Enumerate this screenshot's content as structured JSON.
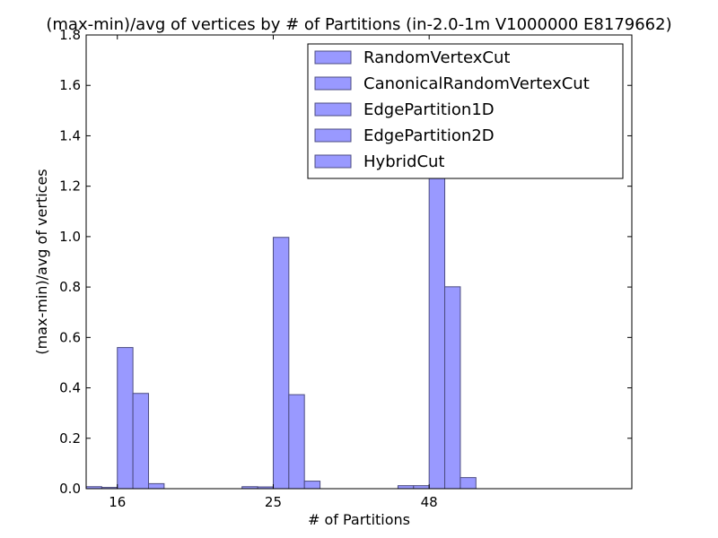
{
  "chart_data": {
    "type": "bar",
    "title": "(max-min)/avg of vertices by # of Partitions (in-2.0-1m V1000000 E8179662)",
    "xlabel": "# of Partitions",
    "ylabel": "(max-min)/avg of vertices",
    "categories": [
      "16",
      "25",
      "48"
    ],
    "ylim": [
      0,
      1.8
    ],
    "yticks": [
      "0.0",
      "0.2",
      "0.4",
      "0.6",
      "0.8",
      "1.0",
      "1.2",
      "1.4",
      "1.6",
      "1.8"
    ],
    "grid": false,
    "legend_position": "top-right",
    "bar_color": "#9999ff",
    "series": [
      {
        "name": "RandomVertexCut",
        "values": [
          0.008,
          0.008,
          0.012
        ]
      },
      {
        "name": "CanonicalRandomVertexCut",
        "values": [
          0.005,
          0.007,
          0.012
        ]
      },
      {
        "name": "EdgePartition1D",
        "values": [
          0.56,
          0.997,
          1.235
        ]
      },
      {
        "name": "EdgePartition2D",
        "values": [
          0.378,
          0.373,
          0.801
        ]
      },
      {
        "name": "HybridCut",
        "values": [
          0.02,
          0.03,
          0.044
        ]
      }
    ]
  }
}
